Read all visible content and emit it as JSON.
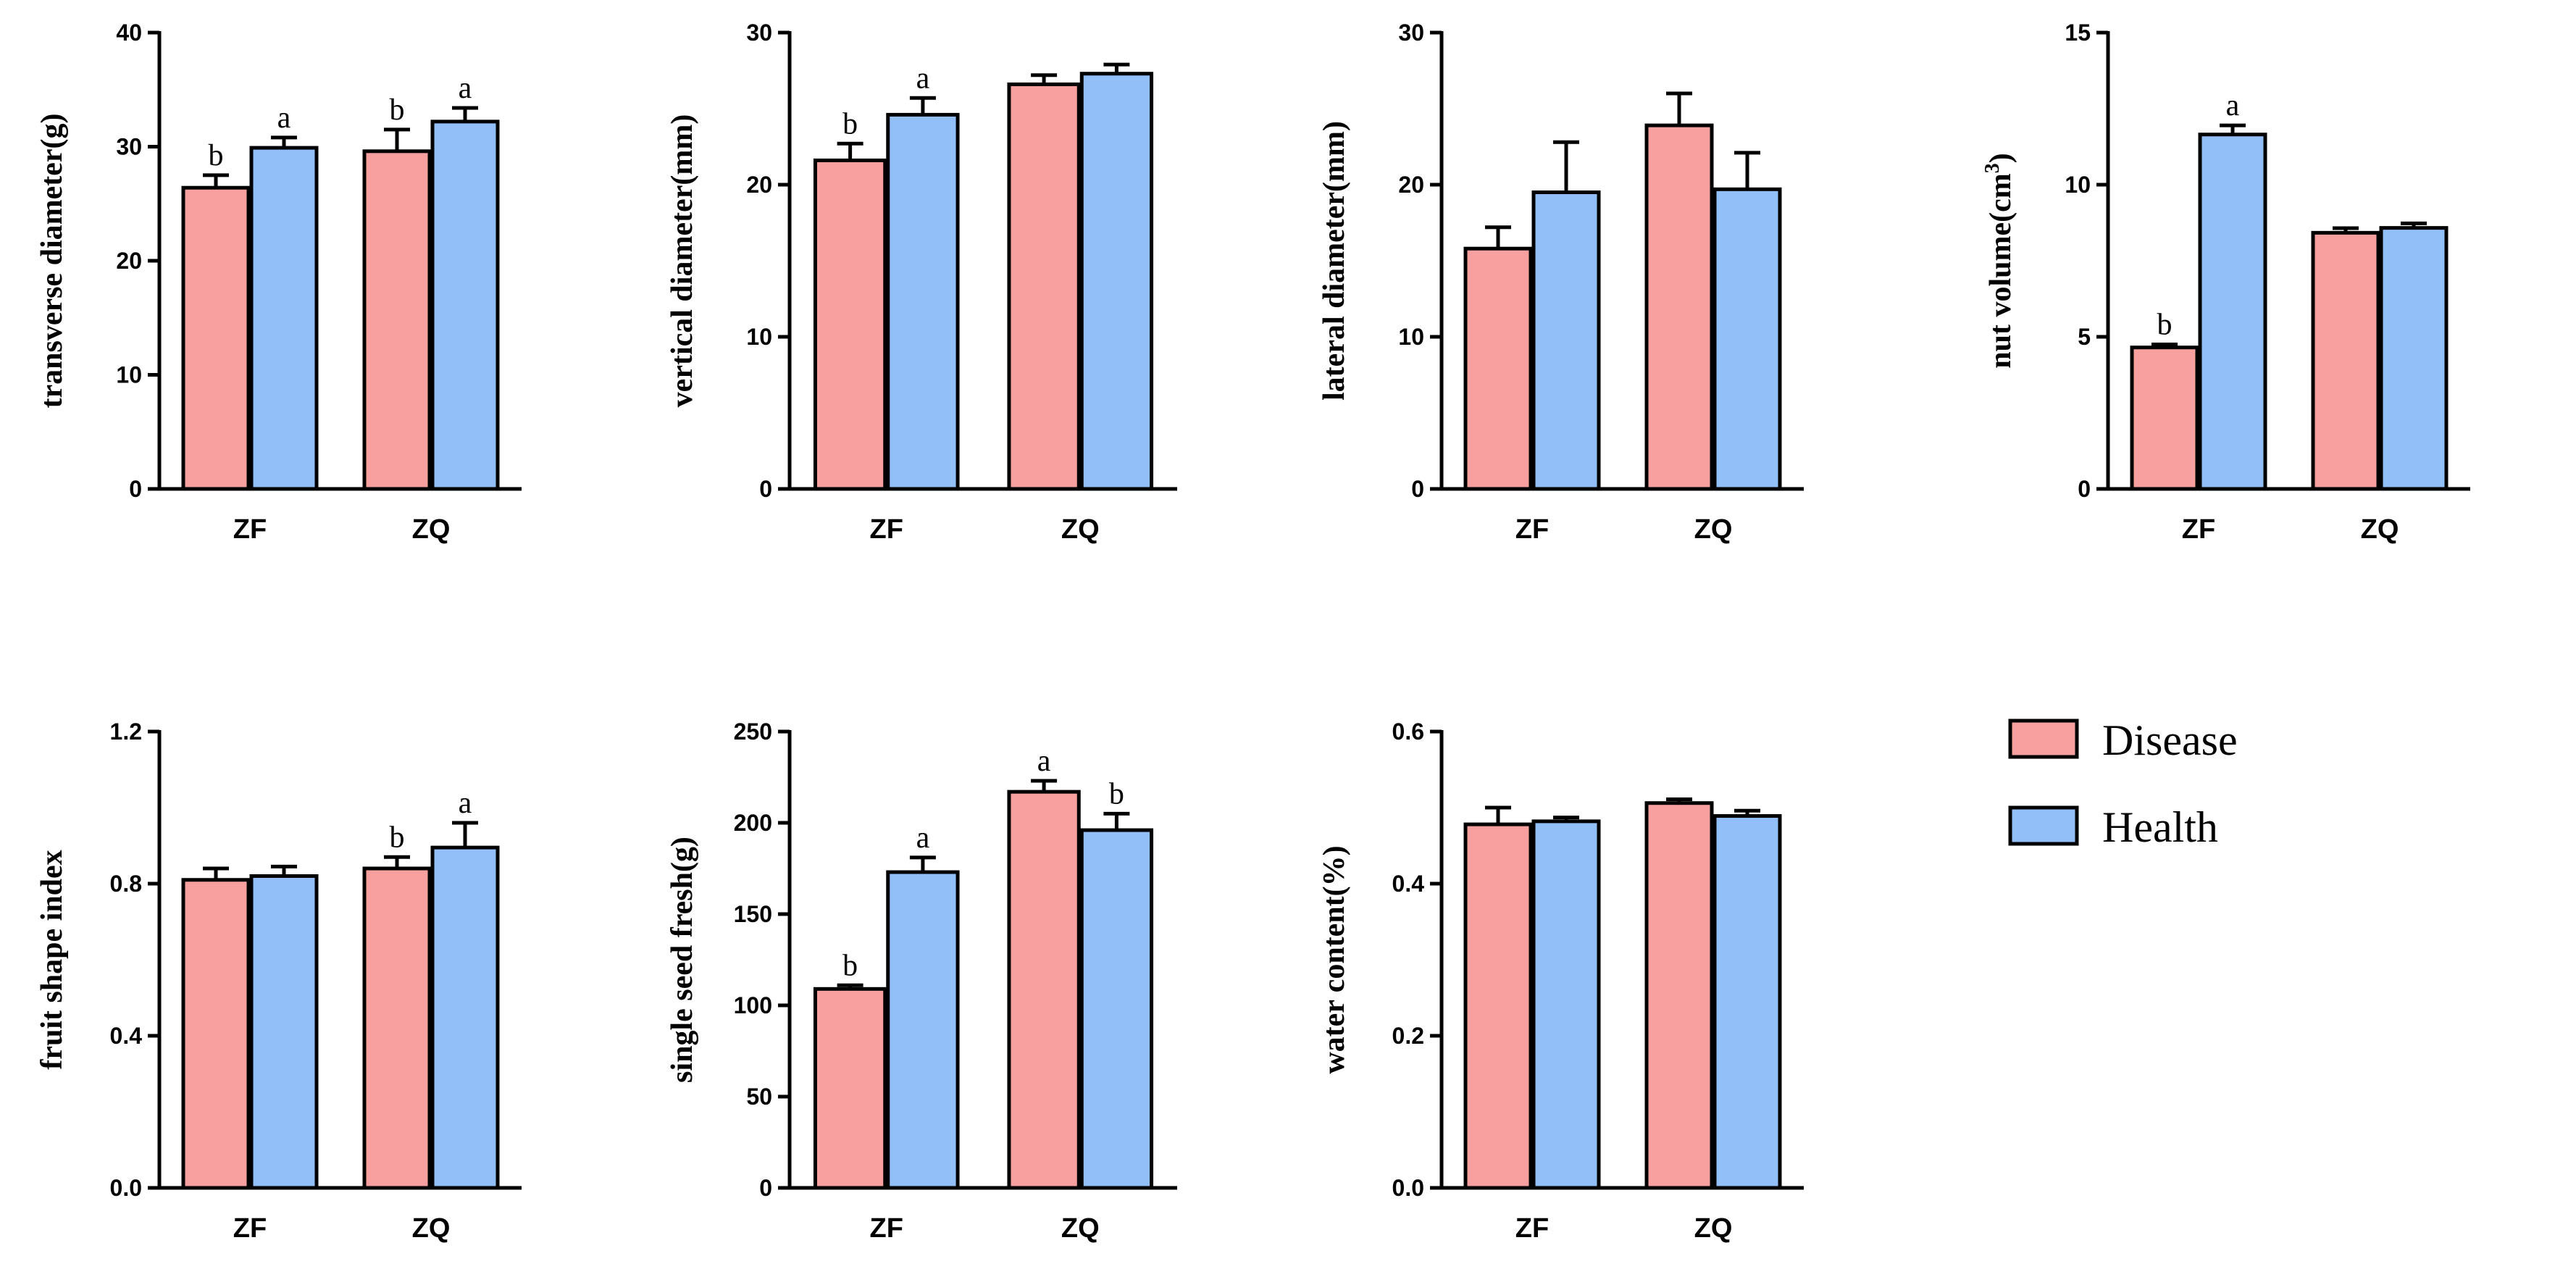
{
  "colors": {
    "Disease": "#F8A0A0",
    "Health": "#92BFF8"
  },
  "legend": [
    {
      "name": "Disease"
    },
    {
      "name": "Health"
    }
  ],
  "chart_data": [
    {
      "type": "bar",
      "ylabel": "transverse diameter(g)",
      "ylim": [
        0,
        40
      ],
      "yticks": [
        0,
        10,
        20,
        30,
        40
      ],
      "ytick_labels": [
        "0",
        "10",
        "20",
        "30",
        "40"
      ],
      "categories": [
        "ZF",
        "ZQ"
      ],
      "series": [
        {
          "name": "Disease",
          "values": [
            26.4,
            29.6
          ],
          "errors": [
            1.1,
            1.9
          ],
          "letters": [
            "b",
            "b"
          ]
        },
        {
          "name": "Health",
          "values": [
            29.9,
            32.2
          ],
          "errors": [
            0.9,
            1.2
          ],
          "letters": [
            "a",
            "a"
          ]
        }
      ]
    },
    {
      "type": "bar",
      "ylabel": "vertical diameter(mm)",
      "ylim": [
        0,
        30
      ],
      "yticks": [
        0,
        10,
        20,
        30
      ],
      "ytick_labels": [
        "0",
        "10",
        "20",
        "30"
      ],
      "categories": [
        "ZF",
        "ZQ"
      ],
      "series": [
        {
          "name": "Disease",
          "values": [
            21.6,
            26.6
          ],
          "errors": [
            1.1,
            0.6
          ],
          "letters": [
            "b",
            ""
          ]
        },
        {
          "name": "Health",
          "values": [
            24.6,
            27.3
          ],
          "errors": [
            1.1,
            0.6
          ],
          "letters": [
            "a",
            ""
          ]
        }
      ]
    },
    {
      "type": "bar",
      "ylabel": "lateral diameter(mm)",
      "ylim": [
        0,
        30
      ],
      "yticks": [
        0,
        10,
        20,
        30
      ],
      "ytick_labels": [
        "0",
        "10",
        "20",
        "30"
      ],
      "categories": [
        "ZF",
        "ZQ"
      ],
      "series": [
        {
          "name": "Disease",
          "values": [
            15.8,
            23.9
          ],
          "errors": [
            1.4,
            2.1
          ],
          "letters": [
            "",
            ""
          ]
        },
        {
          "name": "Health",
          "values": [
            19.5,
            19.7
          ],
          "errors": [
            3.3,
            2.4
          ],
          "letters": [
            "",
            ""
          ]
        }
      ]
    },
    {
      "type": "bar",
      "ylabel": "nut volume(cm",
      "ylabel_sup": "3",
      "ylabel_close": ")",
      "ylim": [
        0,
        15
      ],
      "yticks": [
        0,
        5,
        10,
        15
      ],
      "ytick_labels": [
        "0",
        "5",
        "10",
        "15"
      ],
      "categories": [
        "ZF",
        "ZQ"
      ],
      "series": [
        {
          "name": "Disease",
          "values": [
            4.65,
            8.42
          ],
          "errors": [
            0.1,
            0.15
          ],
          "letters": [
            "b",
            ""
          ]
        },
        {
          "name": "Health",
          "values": [
            11.65,
            8.58
          ],
          "errors": [
            0.3,
            0.15
          ],
          "letters": [
            "a",
            ""
          ]
        }
      ]
    },
    {
      "type": "bar",
      "ylabel": "fruit shape index",
      "ylim": [
        0,
        1.2
      ],
      "yticks": [
        0,
        0.4,
        0.8,
        1.2
      ],
      "ytick_labels": [
        "0.0",
        "0.4",
        "0.8",
        "1.2"
      ],
      "categories": [
        "ZF",
        "ZQ"
      ],
      "series": [
        {
          "name": "Disease",
          "values": [
            0.81,
            0.84
          ],
          "errors": [
            0.03,
            0.03
          ],
          "letters": [
            "",
            "b"
          ]
        },
        {
          "name": "Health",
          "values": [
            0.82,
            0.895
          ],
          "errors": [
            0.025,
            0.065
          ],
          "letters": [
            "",
            "a"
          ]
        }
      ]
    },
    {
      "type": "bar",
      "ylabel": "single seed fresh(g)",
      "ylim": [
        0,
        250
      ],
      "yticks": [
        0,
        50,
        100,
        150,
        200,
        250
      ],
      "ytick_labels": [
        "0",
        "50",
        "100",
        "150",
        "200",
        "250"
      ],
      "categories": [
        "ZF",
        "ZQ"
      ],
      "series": [
        {
          "name": "Disease",
          "values": [
            109,
            217
          ],
          "errors": [
            2,
            6
          ],
          "letters": [
            "b",
            "a"
          ]
        },
        {
          "name": "Health",
          "values": [
            173,
            196
          ],
          "errors": [
            8,
            9
          ],
          "letters": [
            "a",
            "b"
          ]
        }
      ]
    },
    {
      "type": "bar",
      "ylabel": "water content(%)",
      "ylim": [
        0,
        0.6
      ],
      "yticks": [
        0,
        0.2,
        0.4,
        0.6
      ],
      "ytick_labels": [
        "0.0",
        "0.2",
        "0.4",
        "0.6"
      ],
      "categories": [
        "ZF",
        "ZQ"
      ],
      "series": [
        {
          "name": "Disease",
          "values": [
            0.478,
            0.506
          ],
          "errors": [
            0.022,
            0.005
          ],
          "letters": [
            "",
            ""
          ]
        },
        {
          "name": "Health",
          "values": [
            0.482,
            0.489
          ],
          "errors": [
            0.005,
            0.007
          ],
          "letters": [
            "",
            ""
          ]
        }
      ]
    }
  ]
}
